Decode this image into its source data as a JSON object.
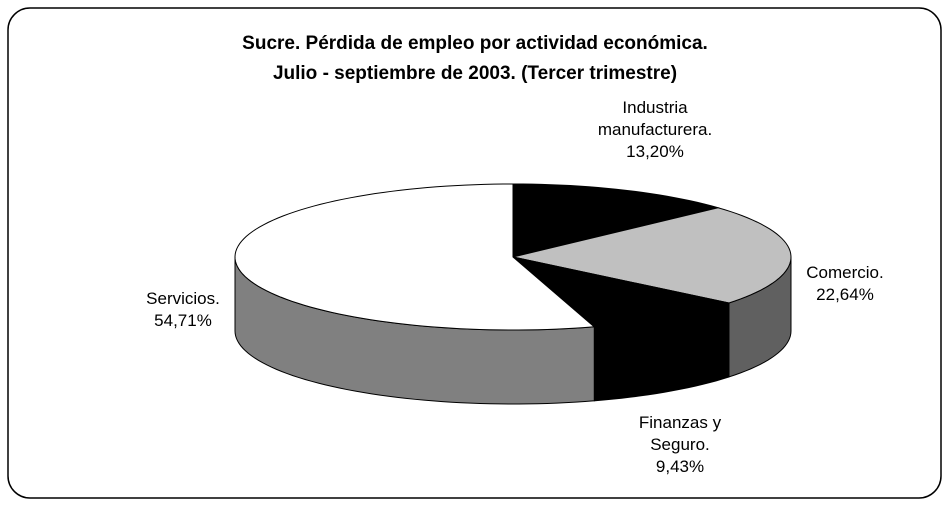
{
  "chart_data": {
    "type": "pie3d",
    "title": [
      "Sucre. Pérdida de empleo por actividad económica.",
      "Julio - septiembre de 2003. (Tercer trimestre)"
    ],
    "categories": [
      "Industria manufacturera.",
      "Comercio.",
      "Finanzas y Seguro.",
      "Servicios."
    ],
    "values": [
      13.2,
      22.64,
      9.43,
      54.71
    ],
    "value_labels": [
      "13,20%",
      "22,64%",
      "9,43%",
      "54,71%"
    ],
    "colors": [
      "#000000",
      "#c0c0c0",
      "#000000",
      "#ffffff"
    ],
    "side_colors": [
      "#000000",
      "#606060",
      "#000000",
      "#808080"
    ]
  }
}
